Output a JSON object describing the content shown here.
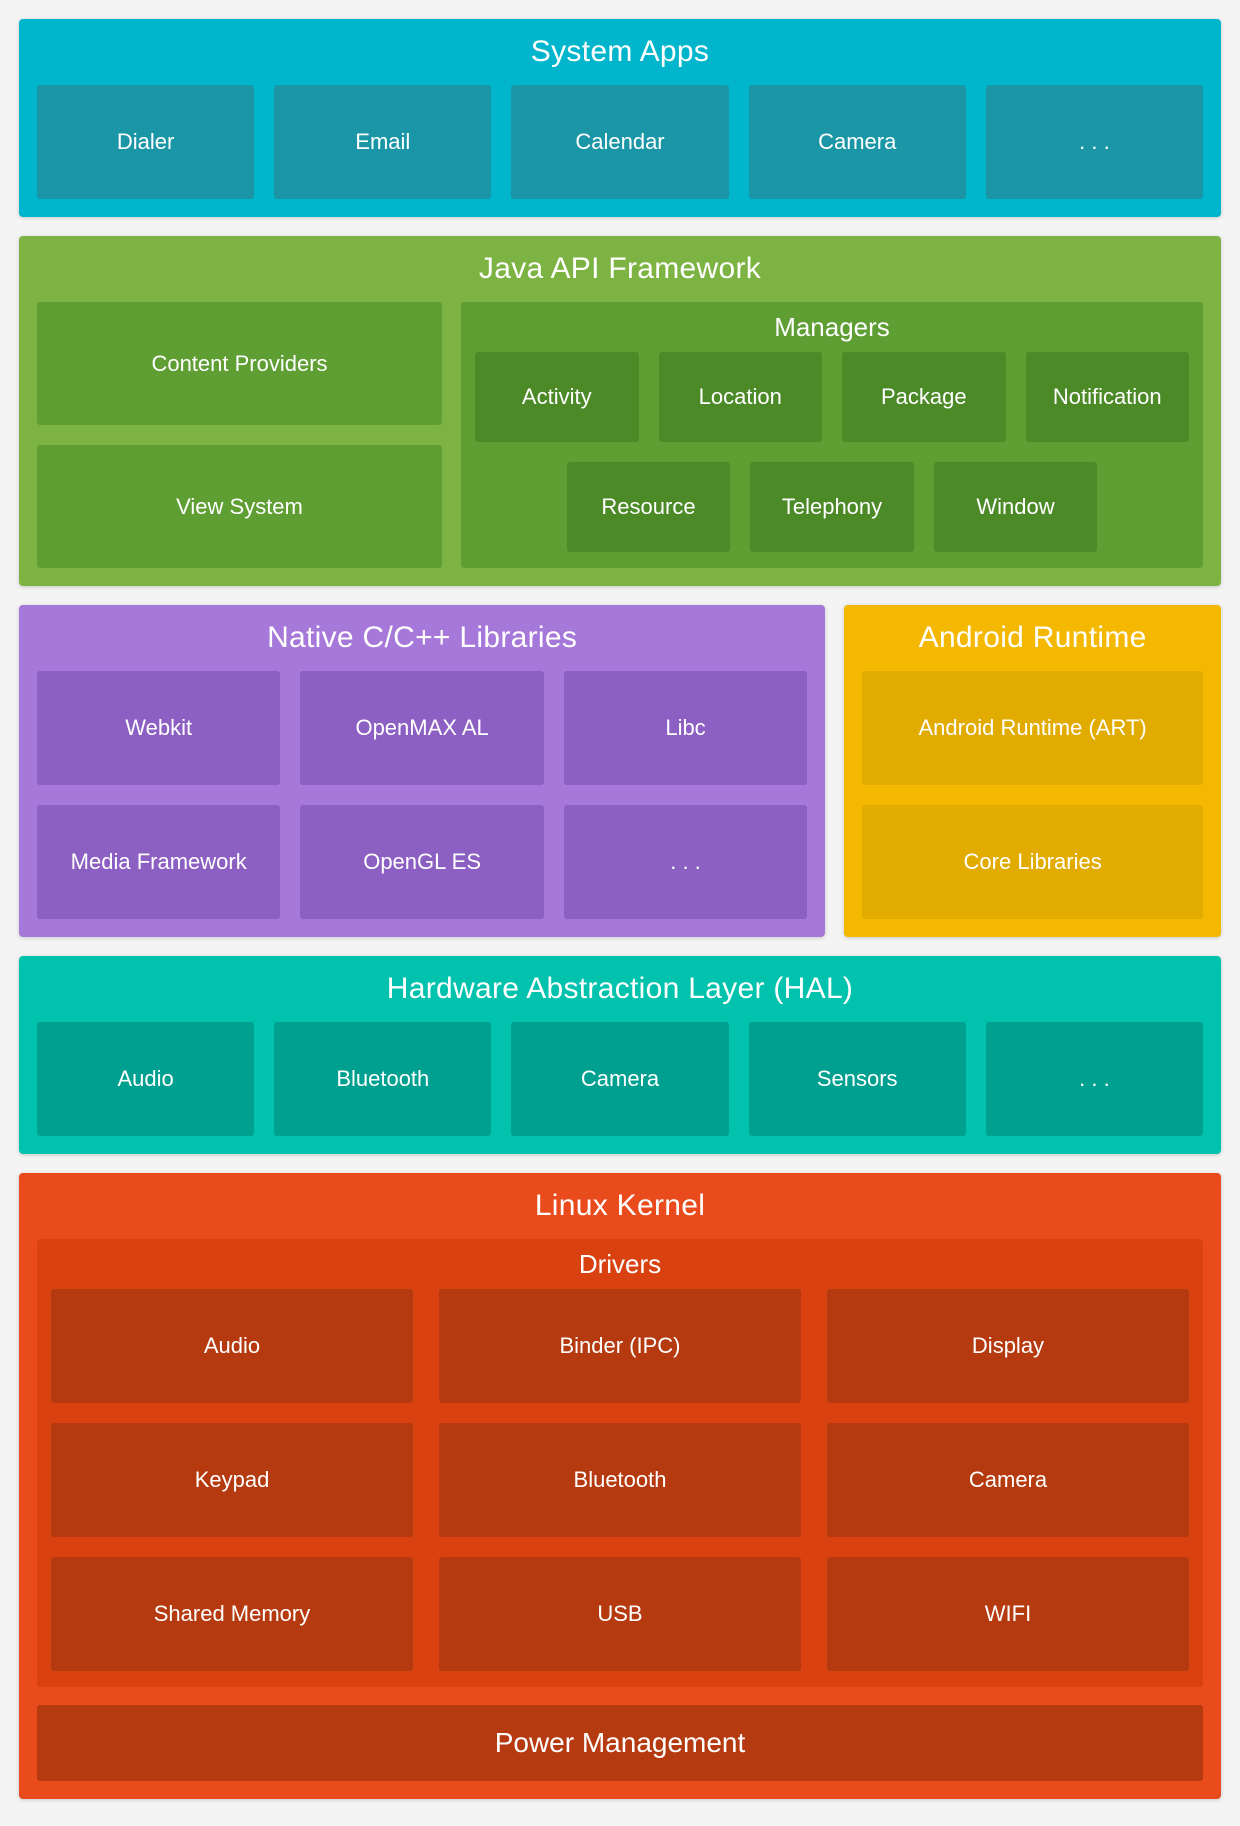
{
  "page": {
    "background": "#f4f4f4",
    "text_color": "#ffffff"
  },
  "system_apps": {
    "title": "System Apps",
    "items": [
      "Dialer",
      "Email",
      "Calendar",
      "Camera",
      ". . ."
    ],
    "colors": {
      "section": "#00b5cc",
      "box": "#1a96a6"
    }
  },
  "java_api": {
    "title": "Java API Framework",
    "left_items": [
      "Content Providers",
      "View System"
    ],
    "managers": {
      "title": "Managers",
      "row1": [
        "Activity",
        "Location",
        "Package",
        "Notification"
      ],
      "row2": [
        "Resource",
        "Telephony",
        "Window"
      ]
    },
    "colors": {
      "section": "#7db343",
      "panel": "#5e9e33",
      "chip": "#4c8a28"
    }
  },
  "native_libs": {
    "title": "Native C/C++ Libraries",
    "items": [
      "Webkit",
      "OpenMAX AL",
      "Libc",
      "Media Framework",
      "OpenGL ES",
      ". . ."
    ],
    "colors": {
      "section": "#a678d9",
      "box": "#8c5fc2"
    }
  },
  "android_runtime": {
    "title": "Android Runtime",
    "items": [
      "Android Runtime (ART)",
      "Core Libraries"
    ],
    "colors": {
      "section": "#f4b800",
      "box": "#e2ab00"
    }
  },
  "hal": {
    "title": "Hardware Abstraction Layer (HAL)",
    "items": [
      "Audio",
      "Bluetooth",
      "Camera",
      "Sensors",
      ". . ."
    ],
    "colors": {
      "section": "#00c2ad",
      "box": "#00a090"
    }
  },
  "linux_kernel": {
    "title": "Linux Kernel",
    "drivers": {
      "title": "Drivers",
      "items": [
        "Audio",
        "Binder (IPC)",
        "Display",
        "Keypad",
        "Bluetooth",
        "Camera",
        "Shared Memory",
        "USB",
        "WIFI"
      ]
    },
    "power_management": "Power Management",
    "colors": {
      "section": "#e94b1d",
      "panel": "#d94210",
      "box": "#b53a10"
    }
  }
}
